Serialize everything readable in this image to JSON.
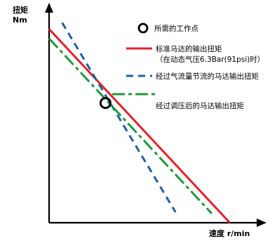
{
  "chart_data": {
    "type": "line",
    "ylabel": [
      "扭矩",
      "Nm"
    ],
    "xlabel": "速度 r/min",
    "xlim": [
      0,
      100
    ],
    "ylim": [
      0,
      100
    ],
    "grid": false,
    "legend_placement": "top-right",
    "operating_point": {
      "label": "所需的工作点",
      "x": 26.8,
      "y": 56.8
    },
    "series": [
      {
        "name": "标准马达的输出扭矩",
        "name_line2": "（在动态气压6.3Bar(91psi)时）",
        "style": "solid",
        "color": "#e8202a",
        "x": [
          0,
          85.9
        ],
        "y": [
          91.9,
          0
        ]
      },
      {
        "name": "经过气流量节流的马达输出扭矩",
        "style": "dashed",
        "color": "#1f5fa8",
        "x": [
          6.2,
          60.1
        ],
        "y": [
          94.9,
          5.0
        ]
      },
      {
        "name": "经过调压后的马达输出扭矩",
        "style": "dashdot",
        "color": "#1e9a3c",
        "x": [
          0,
          77.3
        ],
        "y": [
          87.4,
          4.4
        ]
      }
    ]
  }
}
